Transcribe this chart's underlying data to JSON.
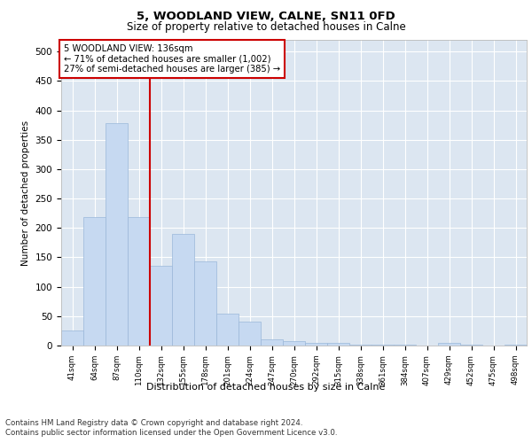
{
  "title1": "5, WOODLAND VIEW, CALNE, SN11 0FD",
  "title2": "Size of property relative to detached houses in Calne",
  "xlabel": "Distribution of detached houses by size in Calne",
  "ylabel": "Number of detached properties",
  "categories": [
    "41sqm",
    "64sqm",
    "87sqm",
    "110sqm",
    "132sqm",
    "155sqm",
    "178sqm",
    "201sqm",
    "224sqm",
    "247sqm",
    "270sqm",
    "292sqm",
    "315sqm",
    "338sqm",
    "361sqm",
    "384sqm",
    "407sqm",
    "429sqm",
    "452sqm",
    "475sqm",
    "498sqm"
  ],
  "values": [
    25,
    218,
    378,
    218,
    135,
    190,
    143,
    54,
    40,
    11,
    7,
    5,
    4,
    1,
    1,
    1,
    0,
    4,
    1,
    0,
    2
  ],
  "bar_color": "#c6d9f1",
  "bar_edge_color": "#9ab7d9",
  "vline_color": "#cc0000",
  "vline_x_index": 3.5,
  "annotation_text": "5 WOODLAND VIEW: 136sqm\n← 71% of detached houses are smaller (1,002)\n27% of semi-detached houses are larger (385) →",
  "annotation_box_color": "#ffffff",
  "annotation_box_edge_color": "#cc0000",
  "plot_bg_color": "#dce6f1",
  "footer1": "Contains HM Land Registry data © Crown copyright and database right 2024.",
  "footer2": "Contains public sector information licensed under the Open Government Licence v3.0.",
  "ylim": [
    0,
    520
  ],
  "yticks": [
    0,
    50,
    100,
    150,
    200,
    250,
    300,
    350,
    400,
    450,
    500
  ]
}
